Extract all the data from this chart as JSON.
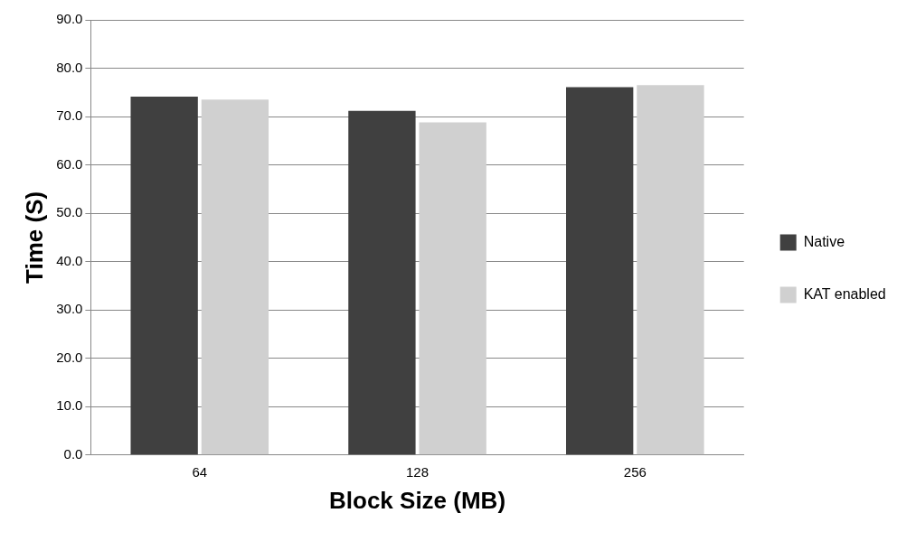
{
  "chart_data": {
    "type": "bar",
    "xlabel": "Block Size (MB)",
    "ylabel": "Time (S)",
    "categories": [
      "64",
      "128",
      "256"
    ],
    "series": [
      {
        "name": "Native",
        "color": "#404040",
        "values": [
          74.1,
          71.2,
          76.1
        ]
      },
      {
        "name": "KAT enabled",
        "color": "#d0d0d0",
        "values": [
          73.5,
          68.8,
          76.5
        ]
      }
    ],
    "ylim": [
      0,
      90
    ],
    "yticks": [
      {
        "value": 0,
        "label": "0.0"
      },
      {
        "value": 10,
        "label": "10.0"
      },
      {
        "value": 20,
        "label": "20.0"
      },
      {
        "value": 30,
        "label": "30.0"
      },
      {
        "value": 40,
        "label": "40.0"
      },
      {
        "value": 50,
        "label": "50.0"
      },
      {
        "value": 60,
        "label": "60.0"
      },
      {
        "value": 70,
        "label": "70.0"
      },
      {
        "value": 80,
        "label": "80.0"
      },
      {
        "value": 90,
        "label": "90.0"
      }
    ],
    "grid": "y",
    "legend": "right"
  }
}
